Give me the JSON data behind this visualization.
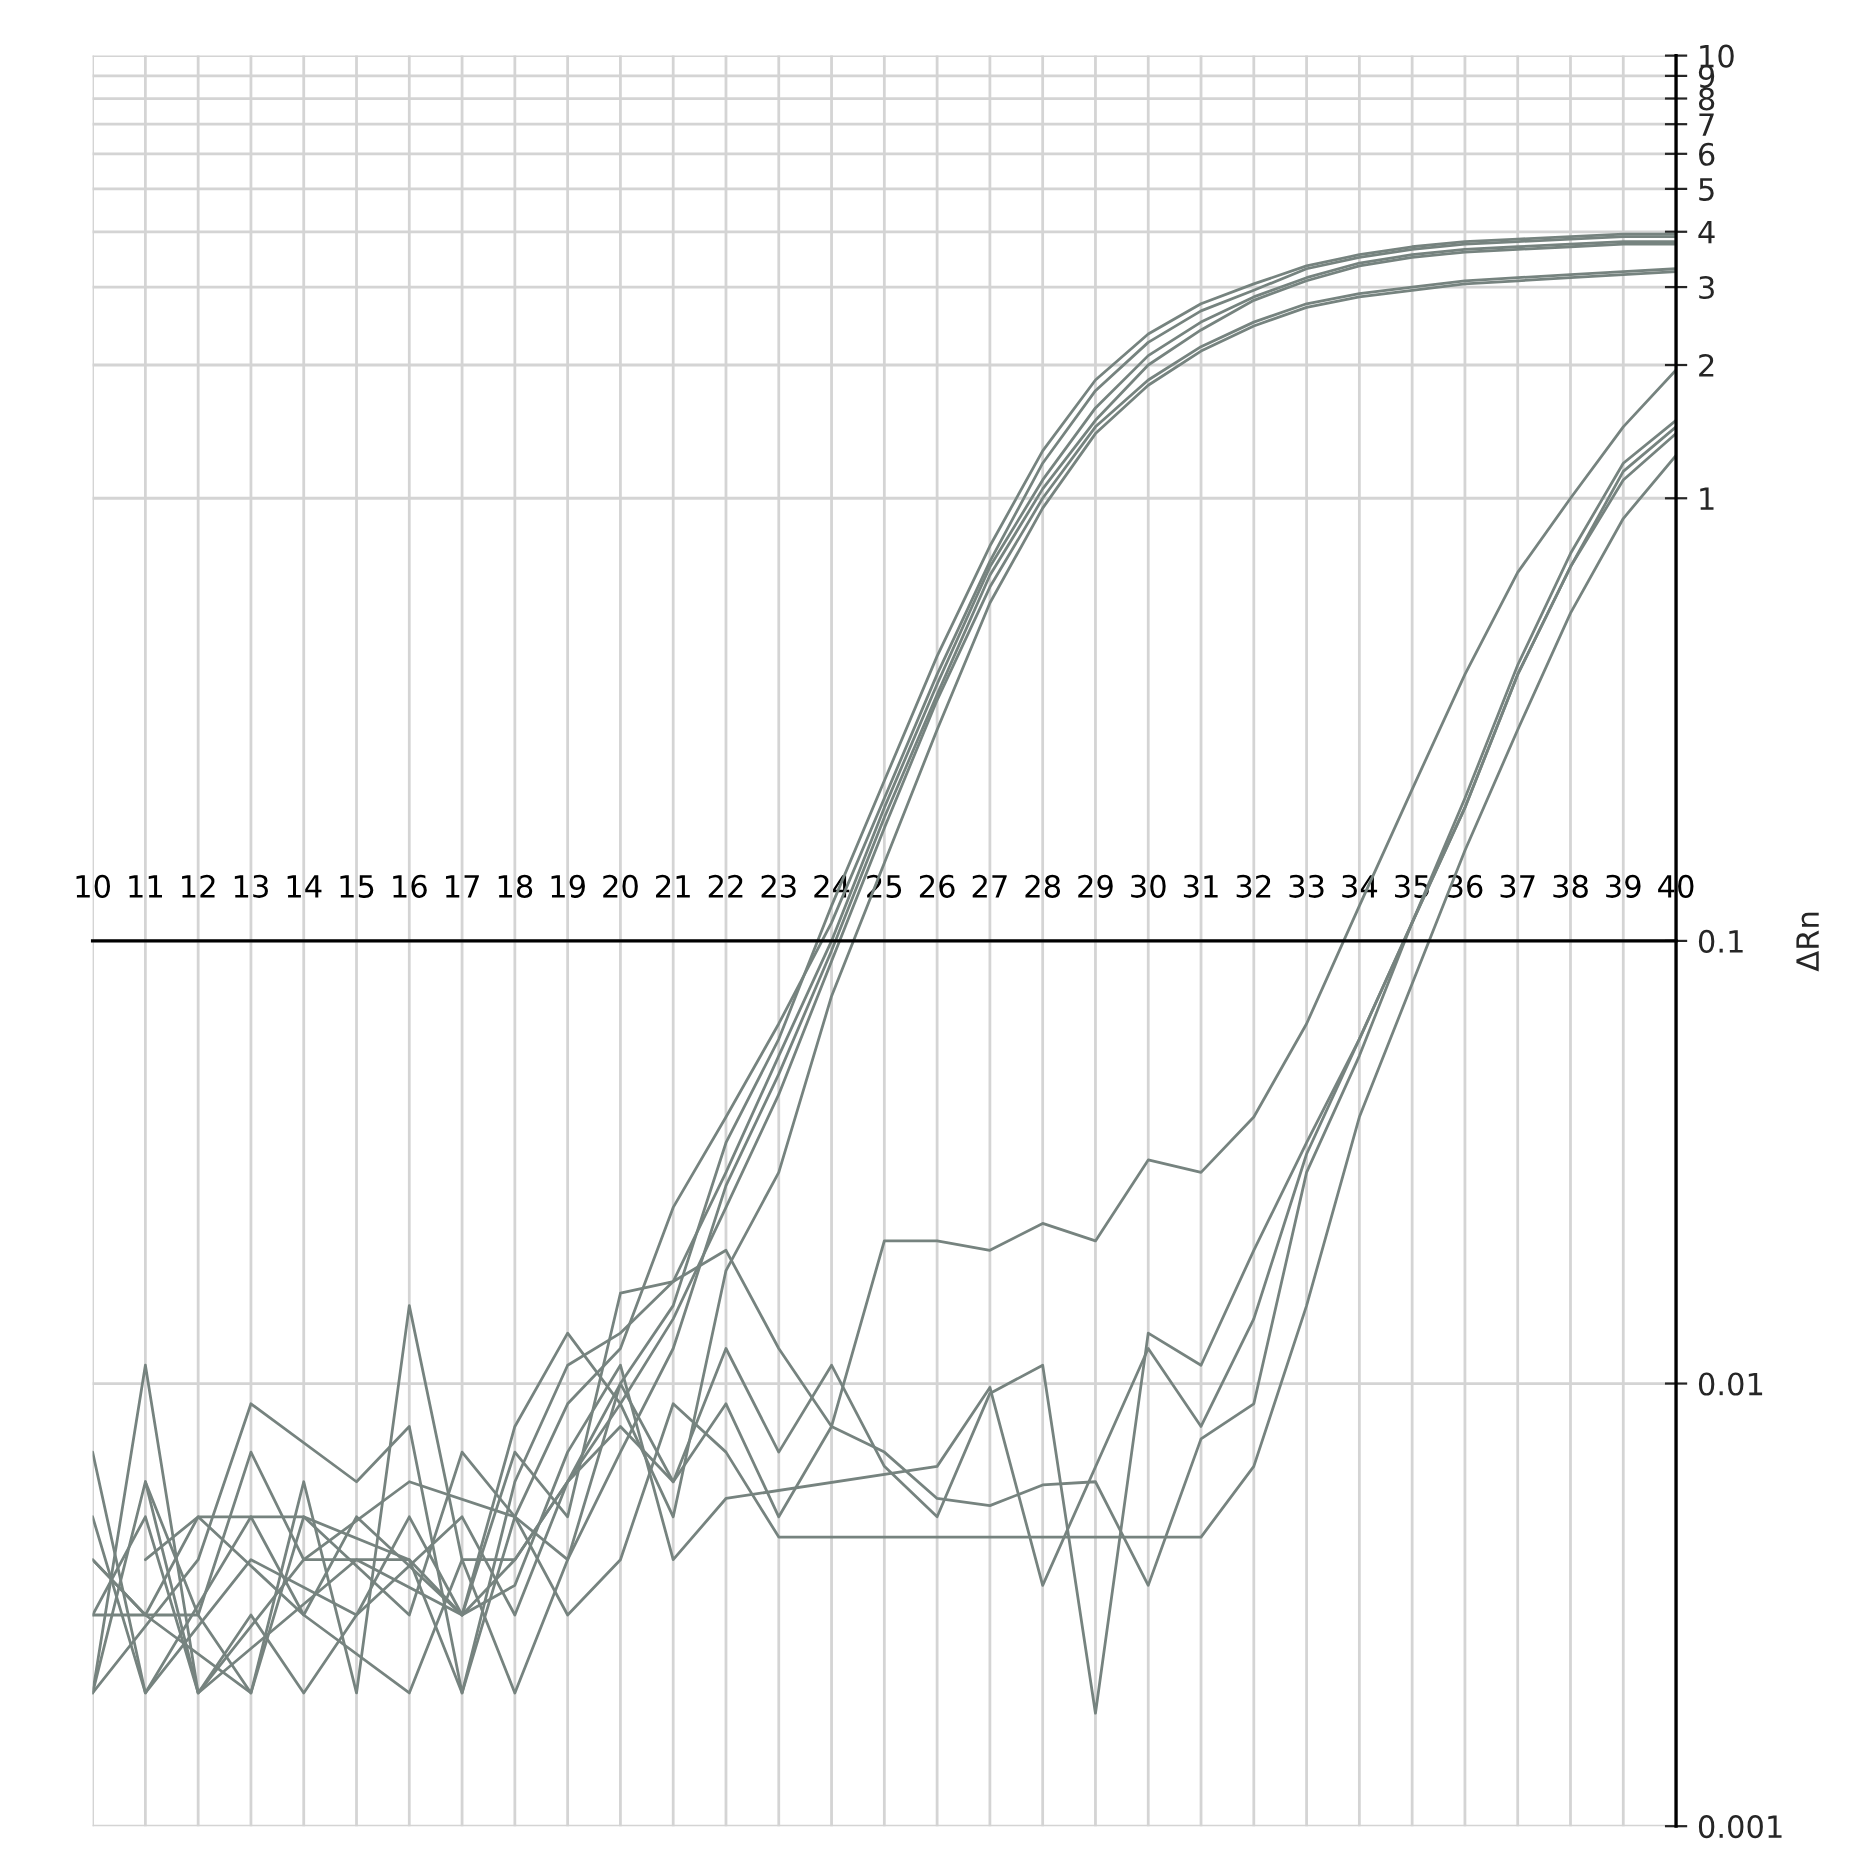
{
  "chart_data": {
    "type": "line",
    "ylabel": "ΔRn",
    "log": "y",
    "grid": true,
    "marker": "none",
    "line_style": "solid",
    "x": [
      10,
      11,
      12,
      13,
      14,
      15,
      16,
      17,
      18,
      19,
      20,
      21,
      22,
      23,
      24,
      25,
      26,
      27,
      28,
      29,
      30,
      31,
      32,
      33,
      34,
      35,
      36,
      37,
      38,
      39,
      40
    ],
    "xlim": [
      10,
      40
    ],
    "xticks": [
      10,
      11,
      12,
      13,
      14,
      15,
      16,
      17,
      18,
      19,
      20,
      21,
      22,
      23,
      24,
      25,
      26,
      27,
      28,
      29,
      30,
      31,
      32,
      33,
      34,
      35,
      36,
      37,
      38,
      39,
      40
    ],
    "ylim": [
      0.001,
      10
    ],
    "yticks": [
      0.001,
      0.01,
      0.1,
      1,
      2,
      3,
      4,
      5,
      6,
      7,
      8,
      9,
      10
    ],
    "series": [
      {
        "color": "#76837f",
        "values": [
          0.007,
          0.002,
          null,
          0.004,
          null,
          0.003,
          null,
          0.005,
          0.003,
          0.006,
          0.01,
          0.015,
          0.035,
          0.06,
          0.12,
          0.23,
          0.44,
          0.78,
          1.28,
          1.85,
          2.35,
          2.75,
          3.05,
          3.35,
          3.55,
          3.7,
          3.8,
          3.85,
          3.9,
          3.95,
          3.95
        ]
      },
      {
        "color": "#76837f",
        "values": [
          0.003,
          0.005,
          0.002,
          null,
          0.004,
          null,
          0.006,
          null,
          0.005,
          0.009,
          0.012,
          0.025,
          0.04,
          0.065,
          0.11,
          0.21,
          0.4,
          0.72,
          1.2,
          1.75,
          2.25,
          2.65,
          2.95,
          3.3,
          3.5,
          3.65,
          3.75,
          3.8,
          3.85,
          3.9,
          3.9
        ]
      },
      {
        "color": "#76837f",
        "values": [
          null,
          0.006,
          0.003,
          0.002,
          0.005,
          null,
          0.004,
          0.003,
          0.007,
          0.005,
          0.016,
          0.017,
          0.03,
          0.055,
          0.1,
          0.2,
          0.38,
          0.7,
          1.1,
          1.6,
          2.1,
          2.5,
          2.85,
          3.15,
          3.4,
          3.55,
          3.65,
          3.7,
          3.75,
          3.8,
          3.8
        ]
      },
      {
        "color": "#76837f",
        "values": [
          0.002,
          null,
          0.004,
          0.009,
          null,
          0.006,
          0.008,
          0.002,
          0.005,
          0.004,
          0.007,
          0.012,
          0.028,
          0.05,
          0.095,
          0.19,
          0.36,
          0.67,
          1.05,
          1.5,
          2.0,
          2.4,
          2.8,
          3.1,
          3.35,
          3.5,
          3.6,
          3.65,
          3.7,
          3.75,
          3.75
        ]
      },
      {
        "color": "#76837f",
        "values": [
          0.004,
          0.003,
          null,
          0.002,
          0.006,
          0.002,
          0.015,
          0.004,
          0.004,
          0.006,
          0.009,
          0.014,
          0.025,
          0.045,
          0.09,
          0.18,
          0.35,
          0.63,
          1.0,
          1.45,
          1.85,
          2.2,
          2.5,
          2.75,
          2.9,
          3.0,
          3.1,
          3.15,
          3.2,
          3.25,
          3.3
        ]
      },
      {
        "color": "#76837f",
        "values": [
          0.002,
          0.011,
          0.002,
          0.003,
          0.002,
          0.003,
          0.005,
          0.003,
          0.008,
          0.013,
          0.009,
          0.005,
          0.018,
          0.03,
          0.075,
          0.15,
          0.3,
          0.58,
          0.95,
          1.4,
          1.8,
          2.15,
          2.45,
          2.7,
          2.85,
          2.95,
          3.05,
          3.1,
          3.15,
          3.2,
          3.25
        ]
      },
      {
        "color": "#76837f",
        "values": [
          0.003,
          null,
          0.003,
          0.007,
          0.004,
          null,
          0.004,
          0.002,
          0.006,
          0.011,
          0.013,
          0.017,
          0.02,
          0.012,
          0.008,
          0.021,
          0.021,
          0.02,
          0.023,
          0.021,
          0.032,
          0.03,
          0.04,
          0.065,
          0.12,
          0.22,
          0.4,
          0.68,
          1.0,
          1.45,
          1.95
        ]
      },
      {
        "color": "#76837f",
        "values": [
          null,
          0.004,
          0.005,
          null,
          0.003,
          0.005,
          null,
          0.003,
          0.004,
          0.006,
          0.008,
          0.006,
          0.009,
          0.005,
          0.008,
          0.007,
          0.0055,
          0.0053,
          0.0059,
          0.006,
          0.0035,
          0.0075,
          0.009,
          0.03,
          0.055,
          0.11,
          0.21,
          0.42,
          0.75,
          1.2,
          1.5
        ]
      },
      {
        "color": "#76837f",
        "values": [
          0.005,
          0.002,
          null,
          0.005,
          0.003,
          null,
          0.002,
          0.004,
          0.002,
          0.004,
          0.01,
          0.006,
          0.012,
          0.007,
          0.011,
          0.0065,
          0.005,
          0.0095,
          0.011,
          0.0018,
          0.013,
          0.011,
          0.02,
          0.035,
          0.06,
          0.11,
          0.2,
          0.4,
          0.7,
          1.15,
          1.45
        ]
      },
      {
        "color": "#76837f",
        "values": [
          0.002,
          0.006,
          0.002,
          null,
          null,
          0.004,
          null,
          0.003,
          0.0035,
          0.007,
          0.011,
          0.004,
          0.0055,
          null,
          null,
          null,
          0.0065,
          0.0098,
          0.0035,
          null,
          0.012,
          0.008,
          0.014,
          0.033,
          0.06,
          0.11,
          0.2,
          0.4,
          0.7,
          1.1,
          1.4
        ]
      },
      {
        "color": "#76837f",
        "values": [
          0.004,
          0.003,
          0.005,
          null,
          0.005,
          null,
          0.003,
          0.007,
          0.005,
          0.003,
          0.004,
          0.009,
          0.007,
          0.0045,
          null,
          null,
          null,
          null,
          null,
          null,
          null,
          0.0045,
          0.0065,
          0.015,
          0.04,
          0.08,
          0.16,
          0.3,
          0.55,
          0.9,
          1.25
        ]
      }
    ]
  }
}
